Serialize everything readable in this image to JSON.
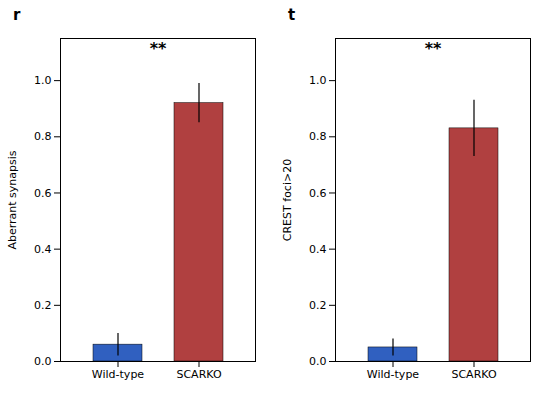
{
  "chart_data": [
    {
      "type": "bar",
      "title": "r",
      "categories": [
        "Wild-type",
        "SCARKO"
      ],
      "values": [
        0.06,
        0.92
      ],
      "errors": [
        0.04,
        0.07
      ],
      "colors": [
        "#3060c0",
        "#b04040"
      ],
      "ylabel": "Aberrant synapsis",
      "ylim": [
        0,
        1.15
      ],
      "yticks": [
        {
          "value": 0,
          "label": "0.0"
        },
        0.2,
        0.4,
        0.6,
        0.8,
        {
          "value": 1.0,
          "label": "1.0"
        }
      ],
      "annotations": [
        "**"
      ]
    },
    {
      "type": "bar",
      "title": "t",
      "categories": [
        "Wild-type",
        "SCARKO"
      ],
      "values": [
        0.05,
        0.83
      ],
      "errors": [
        0.03,
        0.1
      ],
      "colors": [
        "#3060c0",
        "#b04040"
      ],
      "ylabel": "CREST foci>20",
      "ylim": [
        0,
        1.15
      ],
      "yticks": [
        {
          "value": 0,
          "label": "0.0"
        },
        0.2,
        0.4,
        0.6,
        0.8,
        {
          "value": 1.0,
          "label": "1.0"
        }
      ],
      "annotations": [
        "**"
      ]
    }
  ]
}
